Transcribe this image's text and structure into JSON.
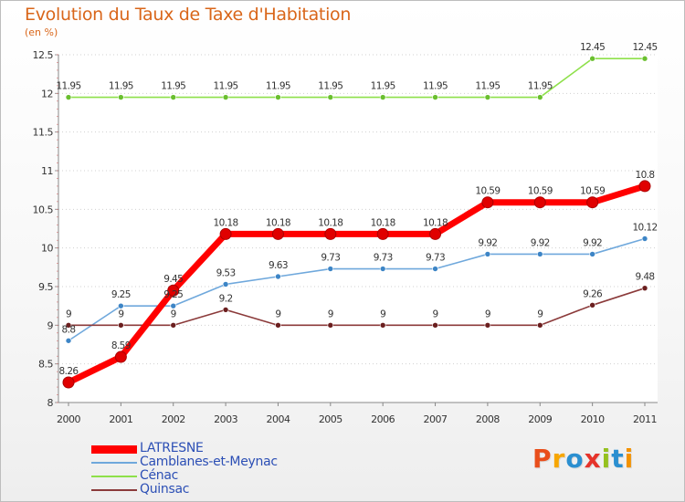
{
  "title": "Evolution du Taux de Taxe d'Habitation",
  "unit_label": "(en %)",
  "logo": {
    "text": "Proxiti",
    "letters": [
      {
        "ch": "P",
        "color": "#e94e1b"
      },
      {
        "ch": "r",
        "color": "#f7a600"
      },
      {
        "ch": "o",
        "color": "#2b8fd0"
      },
      {
        "ch": "x",
        "color": "#e6332a"
      },
      {
        "ch": "i",
        "color": "#95c11f"
      },
      {
        "ch": "t",
        "color": "#2b8fd0"
      },
      {
        "ch": "i",
        "color": "#f39200"
      }
    ]
  },
  "chart_data": {
    "type": "line",
    "title": "Evolution du Taux de Taxe d'Habitation",
    "ylabel": "(en %)",
    "xlabel": "",
    "x": [
      "2000",
      "2001",
      "2002",
      "2003",
      "2004",
      "2005",
      "2006",
      "2007",
      "2008",
      "2009",
      "2010",
      "2011"
    ],
    "ylim": [
      8,
      12.5
    ],
    "yticks": [
      8,
      8.5,
      9,
      9.5,
      10,
      10.5,
      11,
      11.5,
      12,
      12.5
    ],
    "ytick_labels": [
      "8",
      "8.5",
      "9",
      "9.5",
      "10",
      "10.5",
      "11",
      "11.5",
      "12",
      "12.5"
    ],
    "grid": "horizontal dotted",
    "legend_position": "bottom-left",
    "series": [
      {
        "name": "LATRESNE",
        "color": "#ff0000",
        "marker": "#cc0000",
        "emphasis": true,
        "values": [
          8.26,
          8.59,
          9.45,
          10.18,
          10.18,
          10.18,
          10.18,
          10.18,
          10.59,
          10.59,
          10.59,
          10.8
        ]
      },
      {
        "name": "Camblanes-et-Meynac",
        "color": "#6fa8dc",
        "marker": "#3d85c6",
        "emphasis": false,
        "values": [
          8.8,
          9.25,
          9.25,
          9.53,
          9.63,
          9.73,
          9.73,
          9.73,
          9.92,
          9.92,
          9.92,
          10.12
        ]
      },
      {
        "name": "Cénac",
        "color": "#8ee04a",
        "marker": "#6abf2f",
        "emphasis": false,
        "values": [
          11.95,
          11.95,
          11.95,
          11.95,
          11.95,
          11.95,
          11.95,
          11.95,
          11.95,
          11.95,
          12.45,
          12.45
        ]
      },
      {
        "name": "Quinsac",
        "color": "#8b3a3a",
        "marker": "#6b1f1f",
        "emphasis": false,
        "values": [
          9,
          9,
          9,
          9.2,
          9,
          9,
          9,
          9,
          9,
          9,
          9.26,
          9.48
        ]
      }
    ],
    "data_labels": {
      "LATRESNE": [
        "8.26",
        "8.59",
        "9.45",
        "10.18",
        "10.18",
        "10.18",
        "10.18",
        "10.18",
        "10.59",
        "10.59",
        "10.59",
        "10.8"
      ],
      "Camblanes-et-Meynac": [
        "8.8",
        "9.25",
        "9.25",
        "9.53",
        "9.63",
        "9.73",
        "9.73",
        "9.73",
        "9.92",
        "9.92",
        "9.92",
        "10.12"
      ],
      "Cénac": [
        "11.95",
        "11.95",
        "11.95",
        "11.95",
        "11.95",
        "11.95",
        "11.95",
        "11.95",
        "11.95",
        "11.95",
        "12.45",
        "12.45"
      ],
      "Quinsac": [
        "9",
        "9",
        "9",
        "9.2",
        "9",
        "9",
        "9",
        "9",
        "9",
        "9",
        "9.26",
        "9.48"
      ]
    }
  }
}
